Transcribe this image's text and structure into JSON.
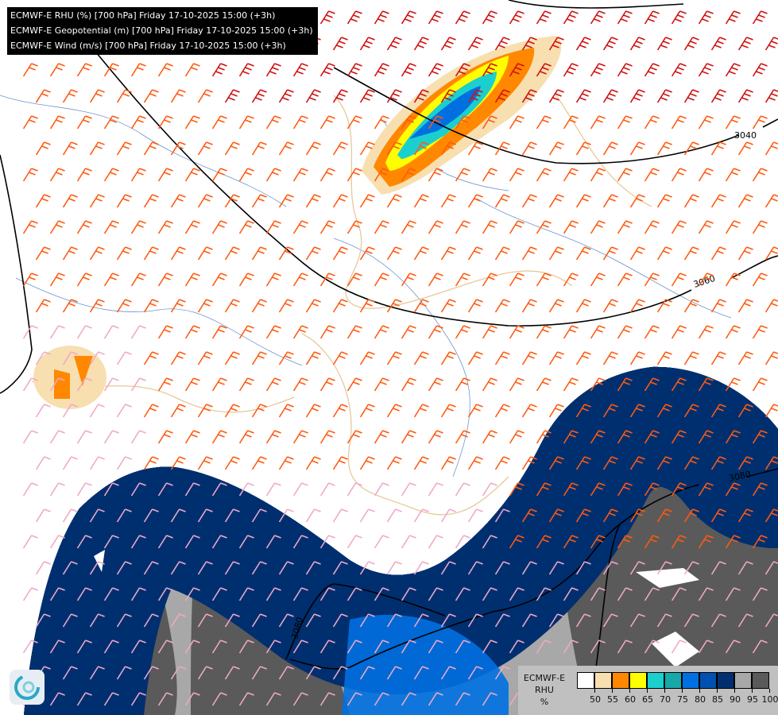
{
  "header": {
    "lines": [
      "ECMWF-E RHU (%) [700 hPa] Friday 17-10-2025 15:00 (+3h)",
      "ECMWF-E Geopotential (m) [700 hPa] Friday 17-10-2025 15:00 (+3h)",
      "ECMWF-E Wind (m/s) [700 hPa] Friday 17-10-2025 15:00 (+3h)"
    ]
  },
  "contour_labels": [
    "3040",
    "3060",
    "3080",
    "3080"
  ],
  "legend": {
    "title_lines": [
      "ECMWF-E",
      "RHU",
      "%"
    ],
    "colors": [
      "#ffffff",
      "#f7dfb0",
      "#ff8800",
      "#ffff00",
      "#1ccfcf",
      "#18a8a8",
      "#0070e0",
      "#0050b0",
      "#002f70",
      "#a8a8a8",
      "#5a5a5a"
    ],
    "ticks": [
      "50",
      "55",
      "60",
      "65",
      "70",
      "75",
      "80",
      "85",
      "90",
      "95",
      "100"
    ]
  },
  "colors": {
    "wind_strong": "#d01010",
    "wind_medium": "#ff5a10",
    "wind_weak": "#f0a8c8",
    "geopotential": "#000000",
    "borders": "#e8c89a",
    "rivers": "#4a7ac0"
  }
}
